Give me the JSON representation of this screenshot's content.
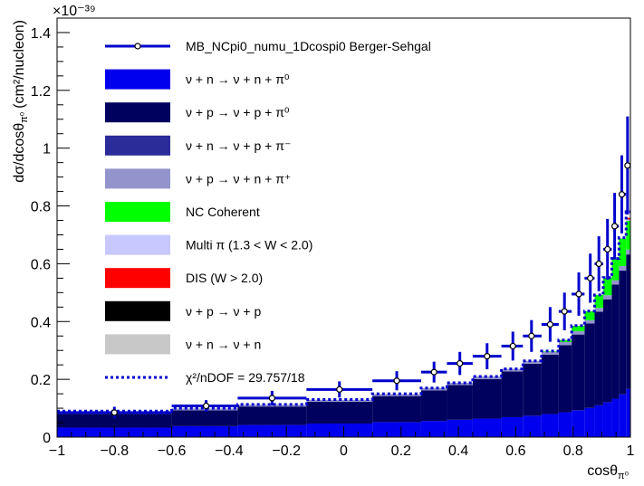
{
  "chart_data": {
    "type": "bar",
    "stacked": true,
    "xlabel": "cosθ",
    "xlabel_sub": "π⁰",
    "ylabel": "dσ/dcosθ",
    "ylabel_sub": "π⁰",
    "ylabel_units": "(cm²/nucleon)",
    "y_exponent_label": "×10⁻³⁹",
    "xlim": [
      -1,
      1
    ],
    "ylim": [
      0,
      1.45
    ],
    "x_ticks": [
      "−1",
      "−0.8",
      "−0.6",
      "−0.4",
      "−0.2",
      "0",
      "0.2",
      "0.4",
      "0.6",
      "0.8",
      "1"
    ],
    "y_ticks": [
      "0",
      "0.2",
      "0.4",
      "0.6",
      "0.8",
      "1",
      "1.2",
      "1.4"
    ],
    "x_tick_values": [
      -1,
      -0.8,
      -0.6,
      -0.4,
      -0.2,
      0,
      0.2,
      0.4,
      0.6,
      0.8,
      1
    ],
    "y_tick_values": [
      0,
      0.2,
      0.4,
      0.6,
      0.8,
      1.0,
      1.2,
      1.4
    ],
    "bin_edges": [
      -1,
      -0.6,
      -0.37,
      -0.13,
      0.1,
      0.27,
      0.36,
      0.45,
      0.55,
      0.625,
      0.69,
      0.75,
      0.795,
      0.84,
      0.875,
      0.905,
      0.935,
      0.96,
      0.985,
      1.0
    ],
    "series": [
      {
        "name": "ν + n → ν + n + π⁰",
        "color": "#0000ee",
        "values": [
          0.033,
          0.038,
          0.042,
          0.047,
          0.052,
          0.056,
          0.06,
          0.064,
          0.069,
          0.074,
          0.08,
          0.086,
          0.093,
          0.101,
          0.11,
          0.121,
          0.133,
          0.148,
          0.167
        ]
      },
      {
        "name": "ν + p → ν + p + π⁰",
        "color": "#00005e",
        "values": [
          0.047,
          0.055,
          0.064,
          0.075,
          0.09,
          0.106,
          0.12,
          0.137,
          0.158,
          0.18,
          0.205,
          0.232,
          0.262,
          0.292,
          0.324,
          0.356,
          0.395,
          0.428,
          0.465
        ]
      },
      {
        "name": "ν + n → ν + p + π⁻",
        "color": "#2b2b9a",
        "values": [
          0.0,
          0.0,
          0.0,
          0.0,
          0.0,
          0.0,
          0.0,
          0.0,
          0.0,
          0.0,
          0.0,
          0.0,
          0.0,
          0.0,
          0.0,
          0.0,
          0.0,
          0.0,
          0.0
        ]
      },
      {
        "name": "ν + p → ν + n + π⁺",
        "color": "#9494cc",
        "values": [
          0.006,
          0.006,
          0.006,
          0.007,
          0.007,
          0.008,
          0.008,
          0.009,
          0.009,
          0.01,
          0.01,
          0.011,
          0.012,
          0.012,
          0.013,
          0.014,
          0.015,
          0.016,
          0.017
        ]
      },
      {
        "name": "NC Coherent",
        "color": "#00ff00",
        "values": [
          0.0,
          0.0,
          0.0,
          0.0,
          0.0,
          0.0,
          0.0,
          0.0,
          0.0,
          0.0,
          0.002,
          0.007,
          0.018,
          0.03,
          0.045,
          0.06,
          0.075,
          0.095,
          0.1
        ]
      },
      {
        "name": "Multi π (1.3 < W < 2.0)",
        "color": "#c8c8ff",
        "values": [
          0.0,
          0.0,
          0.0,
          0.0,
          0.0,
          0.0,
          0.0,
          0.0,
          0.0,
          0.0,
          0.0,
          0.0,
          0.0,
          0.0,
          0.0,
          0.0,
          0.0,
          0.0,
          0.004
        ]
      },
      {
        "name": "DIS (W > 2.0)",
        "color": "#ff0000",
        "values": [
          0.0,
          0.0,
          0.0,
          0.0,
          0.0,
          0.0,
          0.0,
          0.0,
          0.0,
          0.0,
          0.0,
          0.0,
          0.0,
          0.0,
          0.0,
          0.0,
          0.0,
          0.0,
          0.006
        ]
      },
      {
        "name": "ν + p → ν + p",
        "color": "#000000",
        "values": [
          0.0,
          0.0,
          0.0,
          0.0,
          0.0,
          0.0,
          0.0,
          0.0,
          0.0,
          0.0,
          0.0,
          0.0,
          0.0,
          0.0,
          0.0,
          0.0,
          0.0,
          0.0,
          0.0
        ]
      },
      {
        "name": "ν + n → ν + n",
        "color": "#c8c8c8",
        "values": [
          0.0,
          0.0,
          0.0,
          0.0,
          0.0,
          0.0,
          0.0,
          0.0,
          0.0,
          0.0,
          0.0,
          0.0,
          0.0,
          0.0,
          0.0,
          0.0,
          0.0,
          0.0,
          0.0
        ]
      }
    ],
    "mc_total": {
      "name": "χ²/nDOF = 29.757/18",
      "color": "#0000cc",
      "values": [
        0.09,
        0.1,
        0.113,
        0.13,
        0.15,
        0.17,
        0.188,
        0.21,
        0.236,
        0.264,
        0.298,
        0.336,
        0.386,
        0.436,
        0.492,
        0.552,
        0.618,
        0.69,
        0.78
      ]
    },
    "data": {
      "name": "MB_NCpi0_numu_1Dcospi0 Berger-Sehgal",
      "color": "#0000cc",
      "x": [
        -0.8,
        -0.48,
        -0.25,
        -0.015,
        0.185,
        0.315,
        0.405,
        0.5,
        0.59,
        0.655,
        0.72,
        0.77,
        0.82,
        0.86,
        0.89,
        0.92,
        0.945,
        0.97,
        0.99
      ],
      "y": [
        0.085,
        0.108,
        0.135,
        0.165,
        0.195,
        0.225,
        0.255,
        0.28,
        0.315,
        0.35,
        0.39,
        0.435,
        0.495,
        0.55,
        0.6,
        0.65,
        0.73,
        0.84,
        0.94
      ],
      "yerr": [
        0.02,
        0.02,
        0.025,
        0.028,
        0.033,
        0.036,
        0.04,
        0.045,
        0.05,
        0.055,
        0.06,
        0.065,
        0.075,
        0.085,
        0.095,
        0.105,
        0.115,
        0.135,
        0.17
      ]
    },
    "legend_location": "upper-left"
  }
}
